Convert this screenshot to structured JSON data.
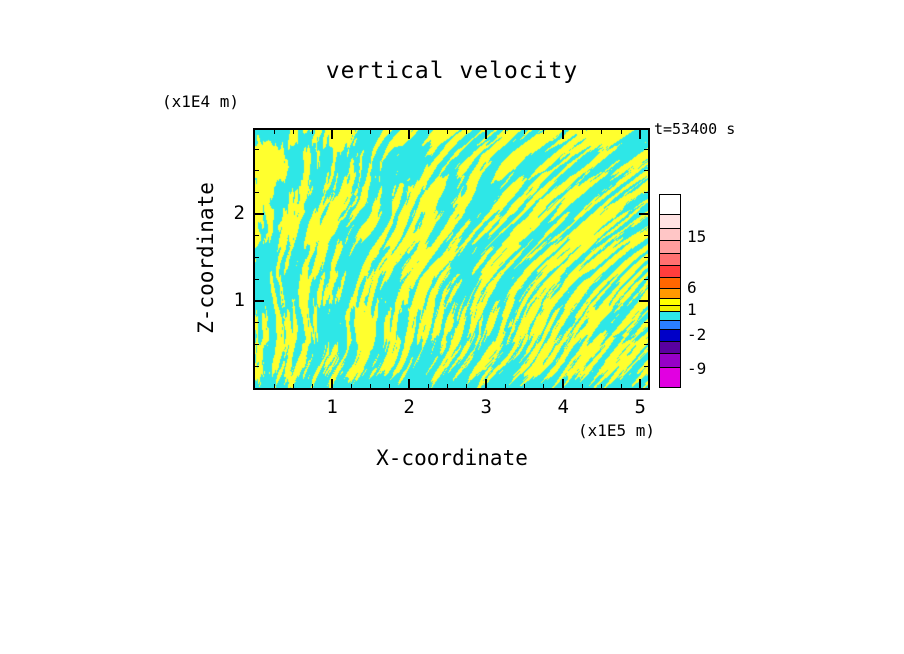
{
  "page": {
    "background": "#FFFFFF",
    "frame_color": "#000000"
  },
  "chart_data": {
    "type": "heatmap",
    "title": "vertical velocity",
    "time_annotation": "t=53400 s",
    "xlabel": "X-coordinate",
    "x_units": "(x1E5 m)",
    "ylabel": "Z-coordinate",
    "y_units": "(x1E4 m)",
    "xlim": [
      0,
      5.1
    ],
    "ylim": [
      0,
      2.97
    ],
    "x_major_ticks": [
      1,
      2,
      3,
      4,
      5
    ],
    "y_major_ticks": [
      1,
      2
    ],
    "minor_tick_step": 0.25,
    "grid": false,
    "legend_position": "colorbar-right",
    "field": {
      "description": "Two-level thresholded vertical-velocity field of convective plumes at t=53400 s: yellow = positive (upward) velocity, cyan = negative (downward) velocity; narrow wiggly vertical streaks, finer-scaled toward the bottom, lowest strip mostly cyan with yellow speckles.",
      "positive_color": "#FFFF2E",
      "negative_color": "#2EE7E7"
    },
    "colorbar": {
      "side": "right",
      "segments": [
        {
          "color": "#FFFFFF",
          "h": 0.105
        },
        {
          "color": "#FFE3E3",
          "h": 0.075
        },
        {
          "color": "#FFC6C6",
          "h": 0.065
        },
        {
          "color": "#FF9E9E",
          "h": 0.065
        },
        {
          "color": "#FF7070",
          "h": 0.065
        },
        {
          "color": "#FF3D3D",
          "h": 0.06
        },
        {
          "color": "#FF6600",
          "h": 0.055
        },
        {
          "color": "#FF9900",
          "h": 0.055
        },
        {
          "color": "#FFFF00",
          "h": 0.03
        },
        {
          "color": "#F0F000",
          "h": 0.03
        },
        {
          "color": "#2EE7E7",
          "h": 0.045
        },
        {
          "color": "#2A7FFF",
          "h": 0.045
        },
        {
          "color": "#0000C8",
          "h": 0.06
        },
        {
          "color": "#5A00A0",
          "h": 0.065
        },
        {
          "color": "#9600C8",
          "h": 0.07
        },
        {
          "color": "#E100E1",
          "h": 0.11
        }
      ],
      "labels": [
        {
          "text": "15",
          "pos": 0.225
        },
        {
          "text": "6",
          "pos": 0.49
        },
        {
          "text": "1",
          "pos": 0.605
        },
        {
          "text": "-2",
          "pos": 0.735
        },
        {
          "text": "-9",
          "pos": 0.91
        }
      ]
    }
  }
}
